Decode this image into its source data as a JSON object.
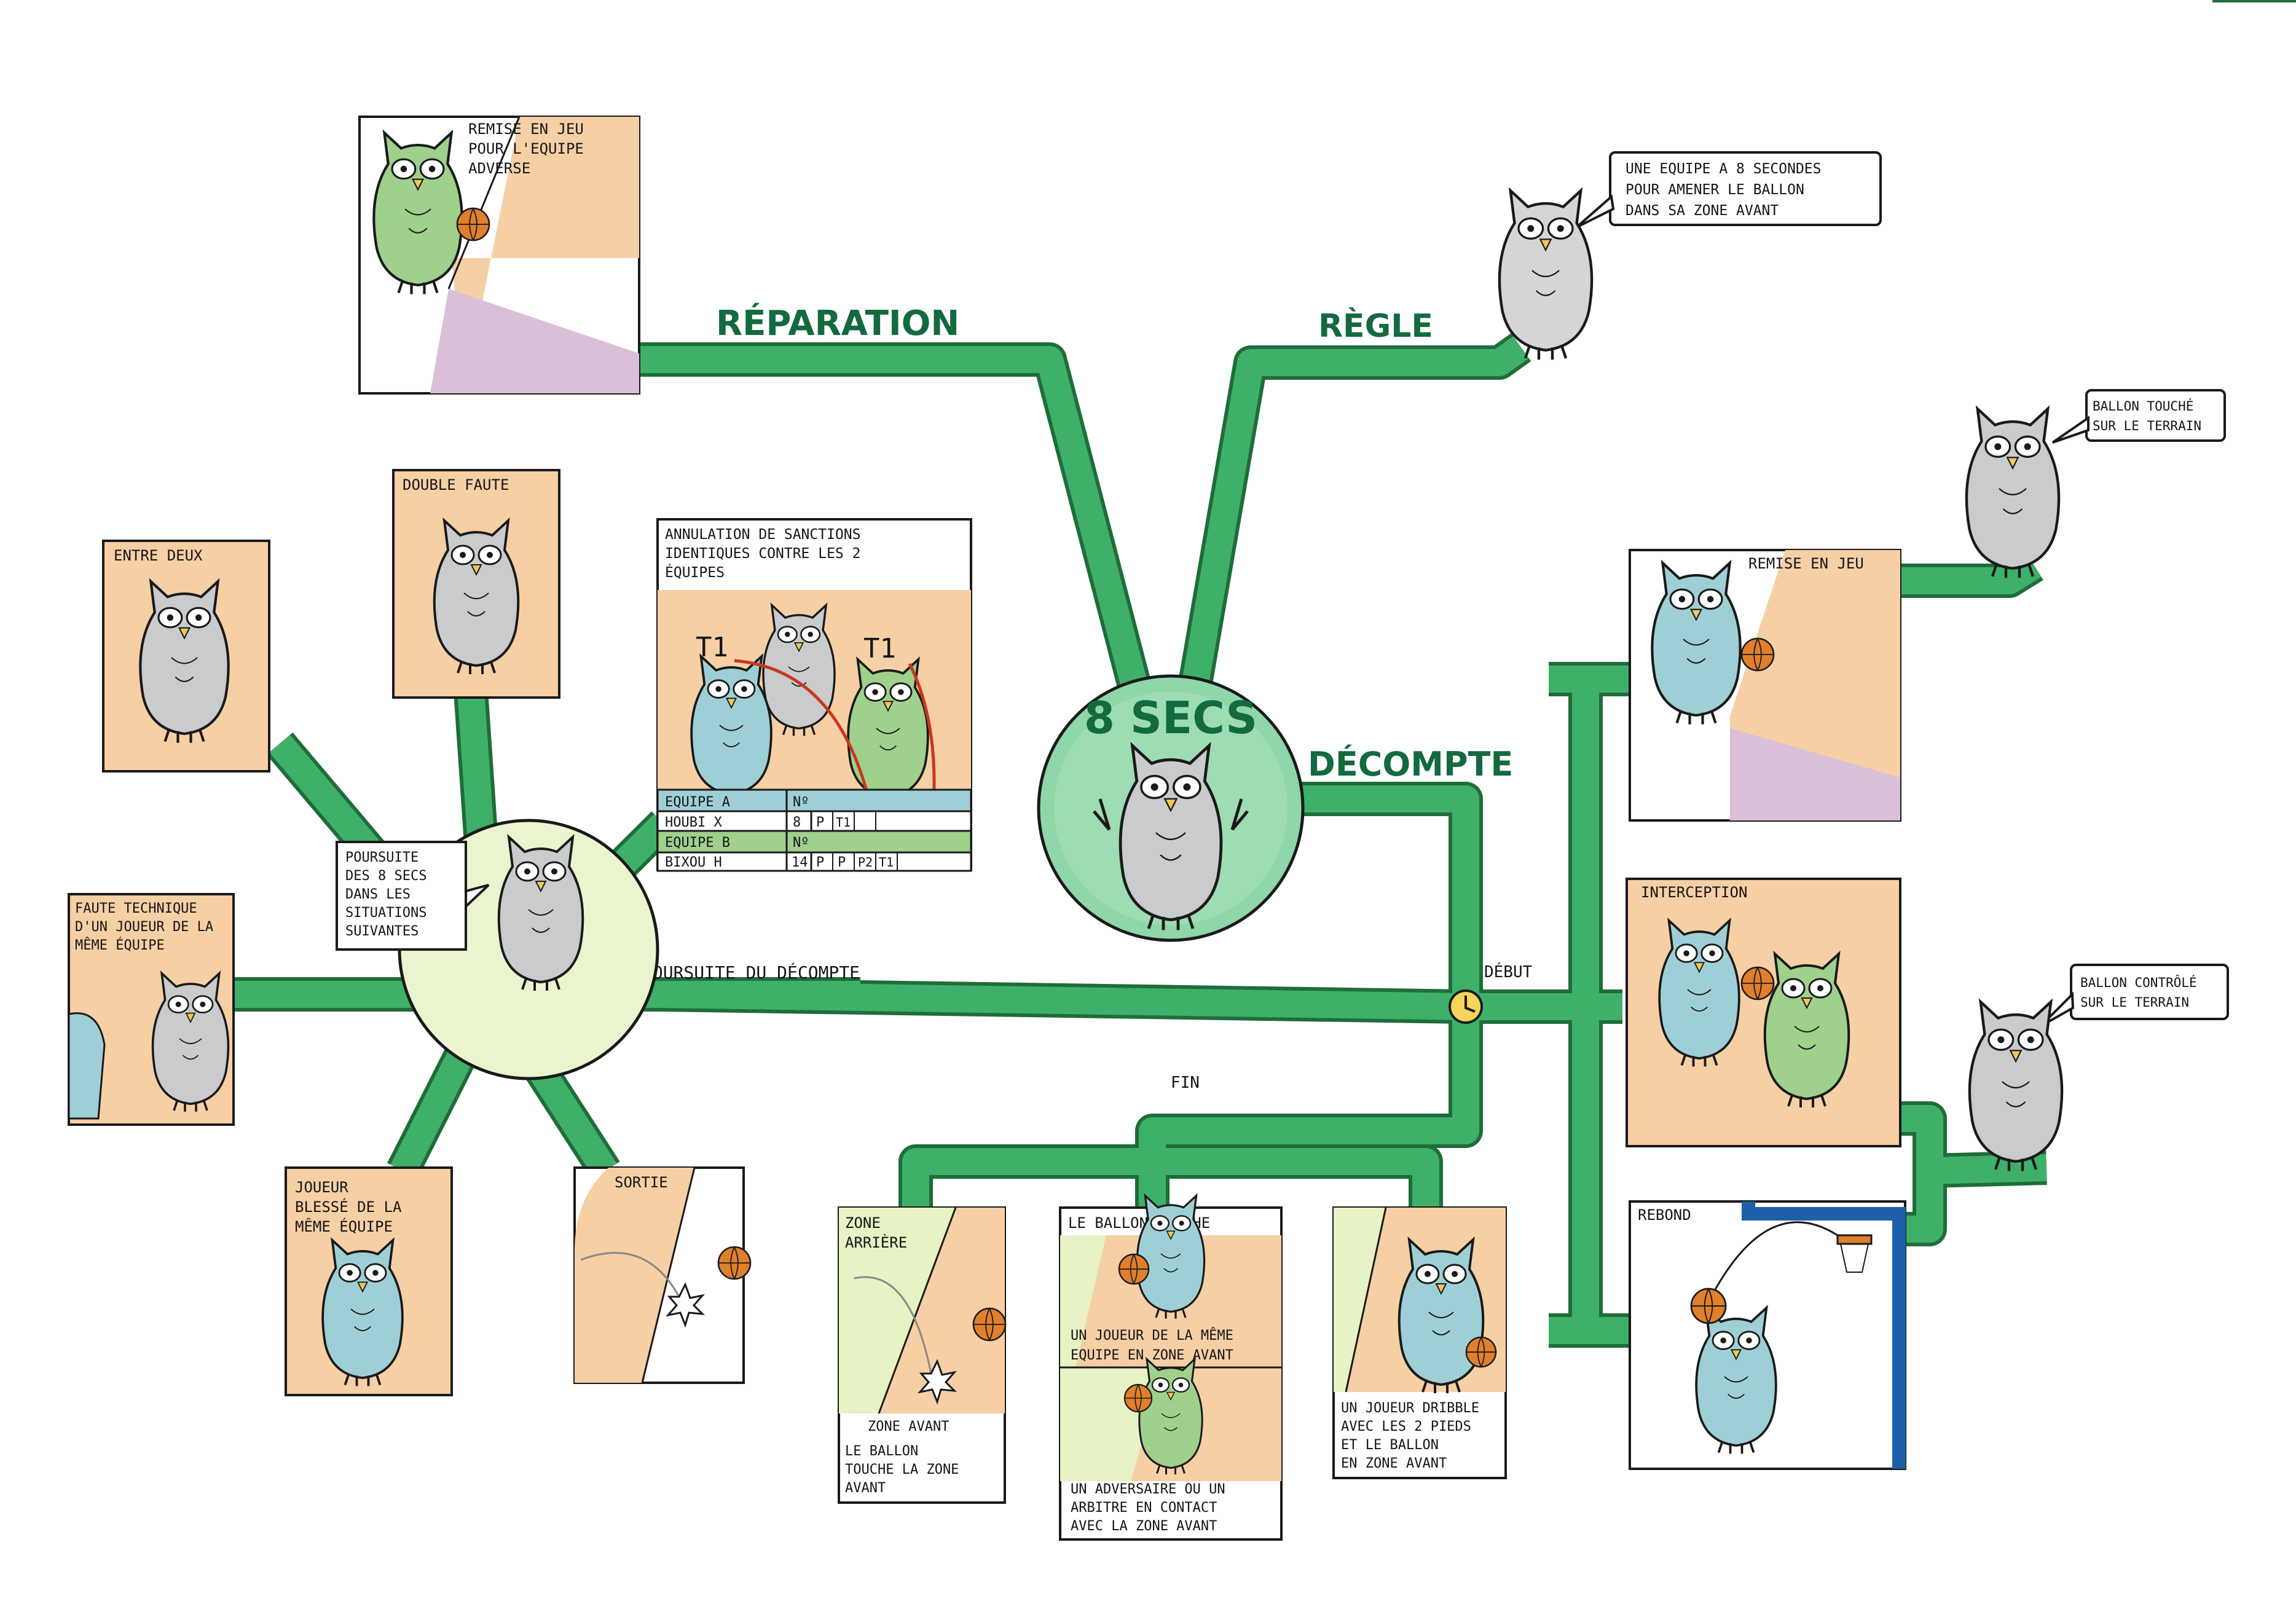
{
  "central": {
    "title": "8 SECS"
  },
  "branches": {
    "reparation": "RÉPARATION",
    "regle": "RÈGLE",
    "decompte": "DÉCOMPTE",
    "poursuite": "POURSUITE DU DÉCOMPTE",
    "debut": "DÉBUT",
    "fin": "FIN"
  },
  "reparation_card": {
    "lines": [
      "REMISE EN JEU",
      "POUR L'EQUIPE",
      "ADVERSE"
    ]
  },
  "regle_bubble": {
    "lines": [
      "UNE EQUIPE A 8 SECONDES",
      "POUR AMENER LE BALLON",
      "DANS SA ZONE AVANT"
    ]
  },
  "poursuite_hub": {
    "lines": [
      "POURSUITE",
      "DES 8 SECS",
      "DANS LES",
      "SITUATIONS",
      "SUIVANTES"
    ]
  },
  "situations": {
    "entre_deux": "ENTRE DEUX",
    "double_faute": "DOUBLE FAUTE",
    "faute_technique": [
      "FAUTE TECHNIQUE",
      "D'UN JOUEUR DE LA",
      "MÊME ÉQUIPE"
    ],
    "joueur_blesse": [
      "JOUEUR",
      "BLESSÉ DE LA",
      "MÊME ÉQUIPE"
    ],
    "sortie": "SORTIE"
  },
  "annulation": {
    "title_lines": [
      "ANNULATION DE SANCTIONS",
      "IDENTIQUES CONTRE LES 2",
      "ÉQUIPES"
    ],
    "t1_left": "T1",
    "t1_right": "T1",
    "table": {
      "team_a": "EQUIPE A",
      "no_label": "Nº",
      "player_a": "HOUBI X",
      "player_a_no": "8",
      "player_a_cells": [
        "P",
        "T1",
        "",
        ""
      ],
      "team_b": "EQUIPE B",
      "player_b": "BIXOU H",
      "player_b_no": "14",
      "player_b_cells": [
        "P",
        "P",
        "P2",
        "T1"
      ]
    }
  },
  "debut_cards": {
    "remise": "REMISE EN JEU",
    "interception": "INTERCEPTION",
    "rebond": "REBOND"
  },
  "bubbles": {
    "touche": [
      "BALLON TOUCHÉ",
      "SUR LE TERRAIN"
    ],
    "controle": [
      "BALLON CONTRÔLÉ",
      "SUR LE TERRAIN"
    ]
  },
  "fin_cards": {
    "zone_label": [
      "ZONE",
      "ARRIÈRE"
    ],
    "zone_avant": "ZONE AVANT",
    "zone_text": [
      "LE BALLON",
      "TOUCHE LA ZONE",
      "AVANT"
    ],
    "ballon_title": "LE BALLON TOUCHE",
    "ballon_text1": [
      "UN JOUEUR DE LA MÊME",
      "EQUIPE EN ZONE AVANT"
    ],
    "ballon_text2": [
      "UN ADVERSAIRE OU UN",
      "ARBITRE EN CONTACT",
      "AVEC LA ZONE AVANT"
    ],
    "dribble_text": [
      "UN JOUEUR DRIBBLE",
      "AVEC LES 2 PIEDS",
      "ET LE BALLON",
      "EN ZONE AVANT"
    ]
  },
  "colors": {
    "road": "#3fb069",
    "road_edge": "#1f6d3a",
    "title_green": "#136a3f",
    "orange_card": "#f6cfa5",
    "mauve": "#d9bfd8",
    "owl_grey": "#c9cbcc",
    "owl_blue": "#9fcfd6",
    "owl_green": "#9fd08c",
    "ball": "#e07f2c",
    "red": "#c8381f",
    "post_blue": "#1d5fa8",
    "hub_yellow": "#eaf4cf",
    "center_green": "#8fd6a8"
  }
}
